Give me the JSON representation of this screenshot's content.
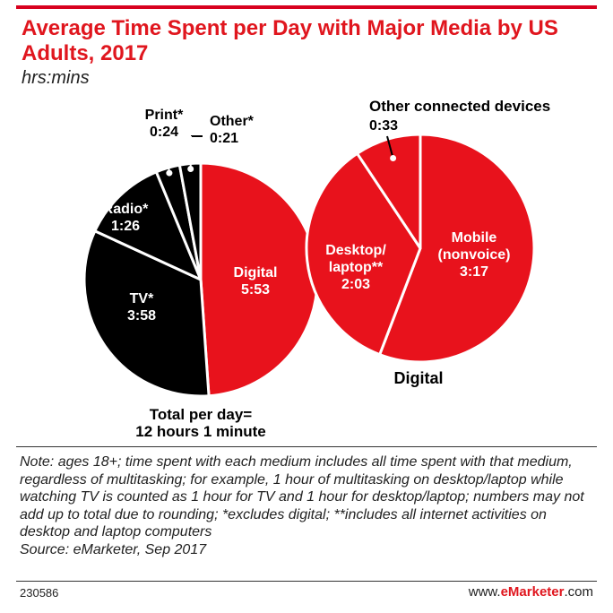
{
  "header": {
    "title": "Average Time Spent per Day with Major Media by US Adults, 2017",
    "subtitle": "hrs:mins"
  },
  "chart_data": [
    {
      "type": "pie",
      "slices": [
        {
          "label": "Digital",
          "value_text": "5:53",
          "minutes": 353,
          "color": "#e8121c",
          "text_color": "#ffffff"
        },
        {
          "label": "TV*",
          "value_text": "3:58",
          "minutes": 238,
          "color": "#000000",
          "text_color": "#ffffff"
        },
        {
          "label": "Radio*",
          "value_text": "1:26",
          "minutes": 86,
          "color": "#000000",
          "text_color": "#ffffff"
        },
        {
          "label": "Print*",
          "value_text": "0:24",
          "minutes": 24,
          "color": "#000000",
          "text_color": "#000000"
        },
        {
          "label": "Other*",
          "value_text": "0:21",
          "minutes": 21,
          "color": "#000000",
          "text_color": "#000000"
        }
      ],
      "total_label": "Total per day=",
      "total_value": "12 hours 1 minute"
    },
    {
      "type": "pie",
      "title": "Digital",
      "slices": [
        {
          "label": "Mobile (nonvoice)",
          "value_text": "3:17",
          "minutes": 197,
          "color": "#e8121c",
          "text_color": "#ffffff"
        },
        {
          "label": "Desktop/ laptop**",
          "value_text": "2:03",
          "minutes": 123,
          "color": "#e8121c",
          "text_color": "#ffffff"
        },
        {
          "label": "Other connected devices",
          "value_text": "0:33",
          "minutes": 33,
          "color": "#e8121c",
          "text_color": "#000000"
        }
      ]
    }
  ],
  "note": {
    "text": "Note: ages 18+; time spent with each medium includes all time spent with that medium, regardless of multitasking; for example, 1 hour of multitasking on desktop/laptop while watching TV is counted as 1 hour for TV and 1 hour for desktop/laptop; numbers may not add up to total due to rounding; *excludes digital; **includes all internet activities on desktop and laptop computers",
    "source": "Source: eMarketer, Sep 2017"
  },
  "footer": {
    "chart_id": "230586",
    "brand_prefix": "www.",
    "brand_name": "eMarketer",
    "brand_suffix": ".com"
  }
}
